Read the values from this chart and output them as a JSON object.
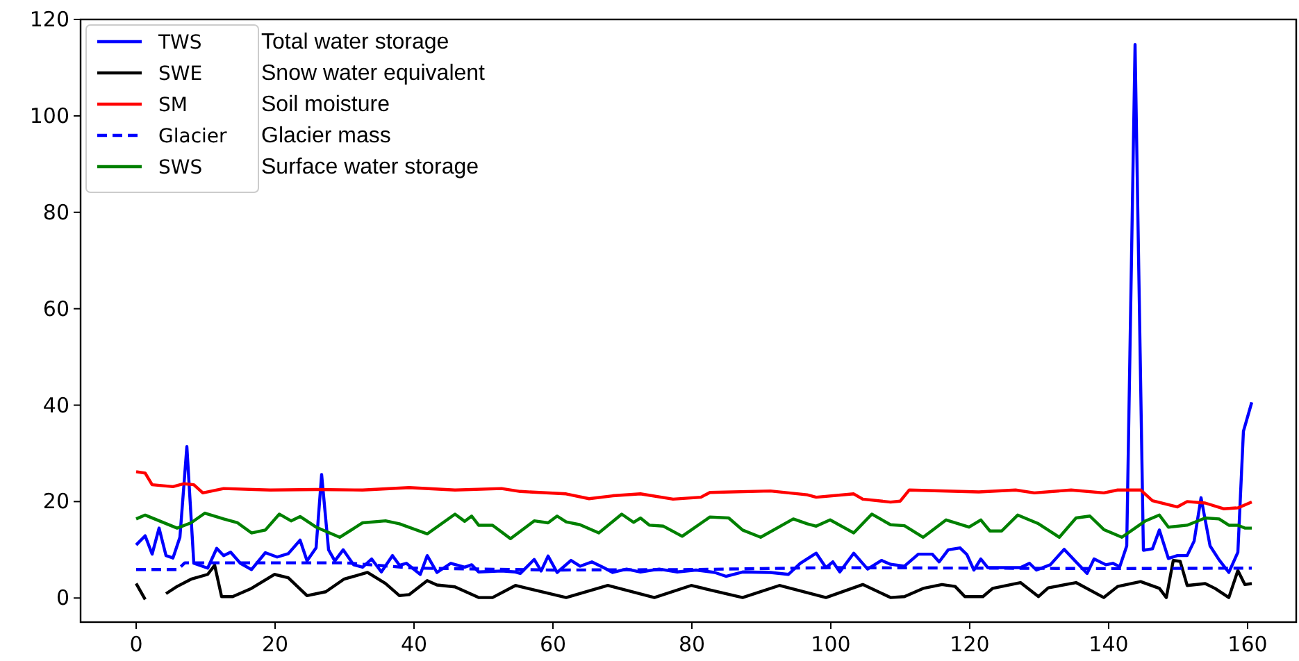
{
  "chart_data": {
    "type": "line",
    "xlim": [
      -8,
      167
    ],
    "ylim": [
      -5,
      120
    ],
    "xticks": [
      0,
      20,
      40,
      60,
      80,
      100,
      120,
      140,
      160
    ],
    "yticks": [
      0,
      20,
      40,
      60,
      80,
      100,
      120
    ],
    "legend": "top left",
    "grid": false,
    "annotations": [
      "Total water storage",
      "Snow water equivalent",
      "Soil moisture",
      "Glacier mass",
      "Surface water storage"
    ],
    "series": [
      {
        "name": "TWS",
        "color": "#0000ff",
        "line_style": "solid",
        "x": [
          0,
          1.3,
          2.3,
          3.3,
          4.3,
          5.3,
          6.3,
          7.3,
          8.3,
          10.3,
          11.6,
          12.6,
          13.6,
          15,
          16.6,
          18.6,
          20.3,
          21.9,
          23.6,
          24.6,
          25.9,
          26.7,
          27.7,
          28.6,
          29.8,
          31.3,
          32.6,
          33.9,
          35.3,
          36.9,
          37.9,
          38.9,
          40.9,
          41.9,
          43.3,
          45.3,
          47.3,
          48.3,
          49.3,
          52.6,
          54.6,
          55.3,
          57.3,
          58.3,
          59.3,
          60.6,
          62.6,
          63.9,
          65.6,
          67.3,
          68.6,
          70.6,
          72.6,
          75.3,
          77.9,
          80.6,
          83.3,
          84.9,
          87.3,
          91.3,
          93.9,
          95.6,
          97.9,
          99.3,
          100.3,
          101.3,
          103.3,
          105.3,
          107.3,
          108.6,
          110.6,
          112.6,
          114.6,
          115.6,
          116.9,
          118.6,
          119.6,
          120.6,
          121.6,
          122.6,
          127.3,
          128.6,
          129.6,
          131.6,
          133.6,
          135.3,
          136.9,
          137.9,
          139.6,
          140.6,
          141.6,
          142.6,
          143.8,
          145,
          146.3,
          147.3,
          148.6,
          149.9,
          151.3,
          152.3,
          153.3,
          154.6,
          155.9,
          157.3,
          158.6,
          159.4,
          160.6
        ],
        "values": [
          11,
          12.9,
          9.1,
          14.5,
          8.8,
          8.3,
          12.6,
          31.4,
          7.2,
          6.2,
          10.3,
          8.8,
          9.5,
          7.2,
          5.9,
          9.4,
          8.5,
          9.2,
          12,
          7.7,
          10.4,
          25.6,
          10,
          7.7,
          10,
          6.9,
          6.4,
          8.1,
          5.4,
          8.8,
          6.8,
          7.2,
          4.9,
          8.8,
          5.3,
          7.2,
          6.4,
          6.9,
          5.4,
          5.6,
          5.4,
          5.1,
          8,
          5.6,
          8.7,
          5.3,
          7.8,
          6.6,
          7.5,
          6.3,
          5.3,
          6,
          5.4,
          6,
          5.4,
          5.8,
          5.3,
          4.5,
          5.4,
          5.3,
          4.9,
          7.2,
          9.3,
          6.3,
          7.5,
          5.4,
          9.3,
          6,
          7.8,
          7,
          6.6,
          9.1,
          9.1,
          7.5,
          10,
          10.4,
          9,
          5.8,
          8.1,
          6.3,
          6.3,
          7.2,
          5.8,
          6.9,
          10.1,
          7.5,
          5.1,
          8.1,
          6.9,
          7.2,
          6.5,
          10.8,
          114.8,
          9.9,
          10.2,
          14.1,
          8.2,
          8.8,
          8.8,
          11.8,
          20.8,
          10.8,
          7.9,
          5.3,
          9.5,
          34.6,
          40.6
        ]
      },
      {
        "name": "SWE",
        "color": "#000000",
        "line_style": "solid",
        "x": [
          0,
          1.3,
          2.8,
          4.3,
          5.9,
          7.9,
          10.3,
          11.3,
          12.3,
          13.9,
          16.6,
          19.9,
          21.9,
          24.6,
          27.3,
          29.9,
          33.3,
          35.9,
          37.9,
          39.3,
          41.9,
          43.3,
          45.9,
          49.3,
          51.3,
          54.6,
          61.9,
          67.9,
          74.6,
          79.9,
          87.3,
          92.6,
          99.3,
          104.6,
          108.6,
          110.6,
          113.3,
          116,
          117.9,
          119.3,
          121.9,
          123.3,
          127.3,
          129.9,
          131.3,
          135.3,
          139.3,
          141.3,
          144.6,
          147.3,
          148.3,
          149.3,
          150.3,
          151.3,
          153.9,
          155.3,
          157.3,
          158.6,
          159.6,
          160.6
        ],
        "values": [
          3,
          -0.3,
          null,
          0.9,
          2.4,
          3.9,
          4.9,
          6.8,
          0.3,
          0.3,
          2,
          4.9,
          4.2,
          0.5,
          1.3,
          3.9,
          5.3,
          3,
          0.5,
          0.7,
          3.6,
          2.7,
          2.3,
          0.1,
          0.1,
          2.6,
          0.1,
          2.6,
          0.1,
          2.6,
          0.1,
          2.6,
          0.1,
          2.8,
          0.1,
          0.3,
          2,
          2.8,
          2.4,
          0.3,
          0.3,
          2,
          3.2,
          0.3,
          2.1,
          3.2,
          0.1,
          2.4,
          3.4,
          2,
          0.1,
          7.8,
          7.6,
          2.6,
          3,
          2,
          0.1,
          5.7,
          2.8,
          3
        ]
      },
      {
        "name": "SM",
        "color": "#ff0000",
        "line_style": "solid",
        "x": [
          0,
          1.3,
          2.3,
          5.3,
          6.9,
          8.3,
          9.6,
          12.6,
          19.3,
          25.9,
          32.6,
          39.3,
          45.9,
          52.6,
          55.3,
          61.9,
          65.2,
          68.6,
          72.6,
          77.3,
          81.3,
          82.6,
          91.3,
          96.6,
          97.9,
          103.3,
          104.6,
          108.6,
          110,
          111.3,
          121.3,
          126.6,
          129.3,
          134.6,
          139.3,
          141.3,
          144.6,
          146.3,
          149.9,
          151.3,
          153.9,
          156.6,
          158.6,
          160.6
        ],
        "values": [
          26.2,
          25.9,
          23.5,
          23.1,
          23.7,
          23.5,
          21.8,
          22.7,
          22.4,
          22.5,
          22.4,
          22.9,
          22.4,
          22.7,
          22.1,
          21.6,
          20.6,
          21.2,
          21.6,
          20.5,
          20.9,
          21.9,
          22.2,
          21.4,
          20.9,
          21.6,
          20.5,
          19.9,
          20.1,
          22.4,
          22,
          22.4,
          21.8,
          22.4,
          21.8,
          22.4,
          22.4,
          20.2,
          18.9,
          20,
          19.7,
          18.5,
          18.7,
          19.9
        ]
      },
      {
        "name": "Glacier",
        "color": "#0000ff",
        "line_style": "dashed",
        "x": [
          0,
          6,
          7,
          30,
          40,
          60,
          80,
          100,
          120,
          140,
          160.6
        ],
        "values": [
          5.9,
          5.9,
          7.3,
          7.3,
          6.2,
          5.8,
          5.9,
          6.3,
          6.2,
          6.1,
          6.2
        ]
      },
      {
        "name": "SWS",
        "color": "#008000",
        "line_style": "solid",
        "x": [
          0,
          1.3,
          5.9,
          7.9,
          9.9,
          12.6,
          14.6,
          16.6,
          18.6,
          20.6,
          22.3,
          23.6,
          25.9,
          29.3,
          32.6,
          35.9,
          37.9,
          41.9,
          45.9,
          47.3,
          48.3,
          49.3,
          51.3,
          53.9,
          57.3,
          59.3,
          60.6,
          61.9,
          63.9,
          66.6,
          69.9,
          71.6,
          72.6,
          73.9,
          75.9,
          78.6,
          82.6,
          85.3,
          87.3,
          89.9,
          94.6,
          96.6,
          97.9,
          99.9,
          103.3,
          105.9,
          108.6,
          110.6,
          113.3,
          116.6,
          119.9,
          121.6,
          122.9,
          124.6,
          126.9,
          129.9,
          132.9,
          135.3,
          137.3,
          139.3,
          141.9,
          145.3,
          147.3,
          148.6,
          151.3,
          153.9,
          155.9,
          157.3,
          158.6,
          159.6,
          160.6
        ],
        "values": [
          16.4,
          17.2,
          14.5,
          15.6,
          17.6,
          16.4,
          15.6,
          13.5,
          14.1,
          17.4,
          16,
          16.9,
          14.7,
          12.6,
          15.6,
          16,
          15.4,
          13.3,
          17.4,
          15.9,
          17,
          15.1,
          15.1,
          12.3,
          16,
          15.6,
          17,
          15.8,
          15.2,
          13.5,
          17.4,
          15.7,
          16.6,
          15.1,
          14.9,
          12.8,
          16.8,
          16.6,
          14.1,
          12.6,
          16.4,
          15.4,
          14.9,
          16.2,
          13.5,
          17.4,
          15.2,
          15,
          12.6,
          16.2,
          14.7,
          16.2,
          13.9,
          13.9,
          17.2,
          15.4,
          12.6,
          16.6,
          17,
          14.2,
          12.6,
          16,
          17.2,
          14.7,
          15.1,
          16.6,
          16.4,
          15.1,
          15.1,
          14.5,
          14.5
        ]
      }
    ]
  }
}
